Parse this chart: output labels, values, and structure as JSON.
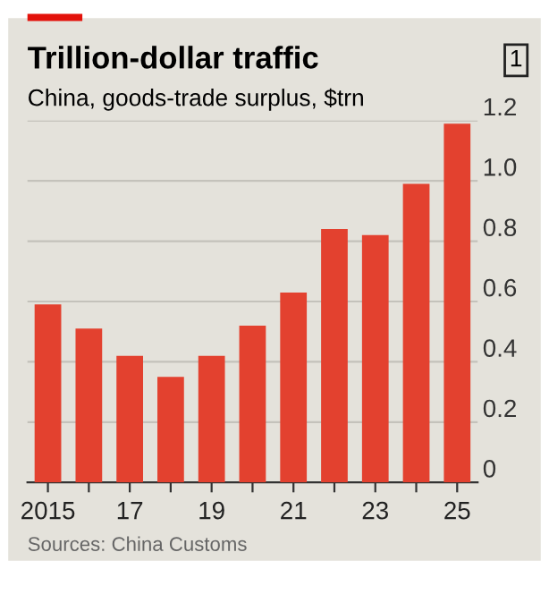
{
  "chart_data": {
    "type": "bar",
    "title": "Trillion-dollar traffic",
    "subtitle": "China, goods-trade surplus, $trn",
    "categories": [
      "2015",
      null,
      "17",
      null,
      "19",
      null,
      "21",
      null,
      "23",
      null,
      "25"
    ],
    "values": [
      0.59,
      0.51,
      0.42,
      0.35,
      0.42,
      0.52,
      0.63,
      0.84,
      0.82,
      0.99,
      1.19
    ],
    "color": "#e3412f",
    "ylim": [
      0,
      1.2
    ],
    "yticks": [
      0,
      0.2,
      0.4,
      0.6,
      0.8,
      {
        "value": 1.0,
        "label": "1.0"
      },
      1.2
    ],
    "grid": "y",
    "annotations": [
      "1",
      "Sources: China Customs"
    ]
  }
}
